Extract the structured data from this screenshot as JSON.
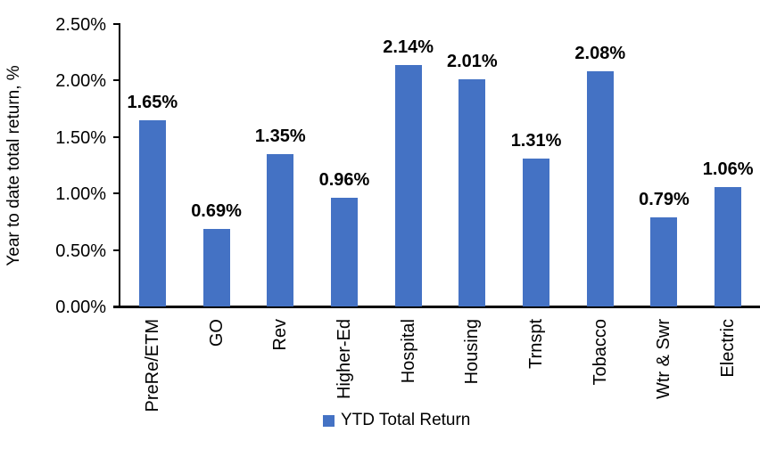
{
  "chart_data": {
    "type": "bar",
    "title": "",
    "categories": [
      "PreRe/ETM",
      "GO",
      "Rev",
      "Higher-Ed",
      "Hospital",
      "Housing",
      "Trnspt",
      "Tobacco",
      "Wtr & Swr",
      "Electric"
    ],
    "values": [
      1.65,
      0.69,
      1.35,
      0.96,
      2.14,
      2.01,
      1.31,
      2.08,
      0.79,
      1.06
    ],
    "value_labels": [
      "1.65%",
      "0.69%",
      "1.35%",
      "0.96%",
      "2.14%",
      "2.01%",
      "1.31%",
      "2.08%",
      "0.79%",
      "1.06%"
    ],
    "xlabel": "",
    "ylabel": "Year to date total return, %",
    "ylim": [
      0,
      2.5
    ],
    "ytick_labels": [
      "0.00%",
      "0.50%",
      "1.00%",
      "1.50%",
      "2.00%",
      "2.50%"
    ],
    "grid": false,
    "legend_position": "bottom-center",
    "legend": {
      "label": "YTD Total Return"
    },
    "colors": {
      "bar_fill": "#4472C4",
      "axis": "#000000",
      "text": "#000000",
      "background": "#FFFFFF"
    }
  }
}
